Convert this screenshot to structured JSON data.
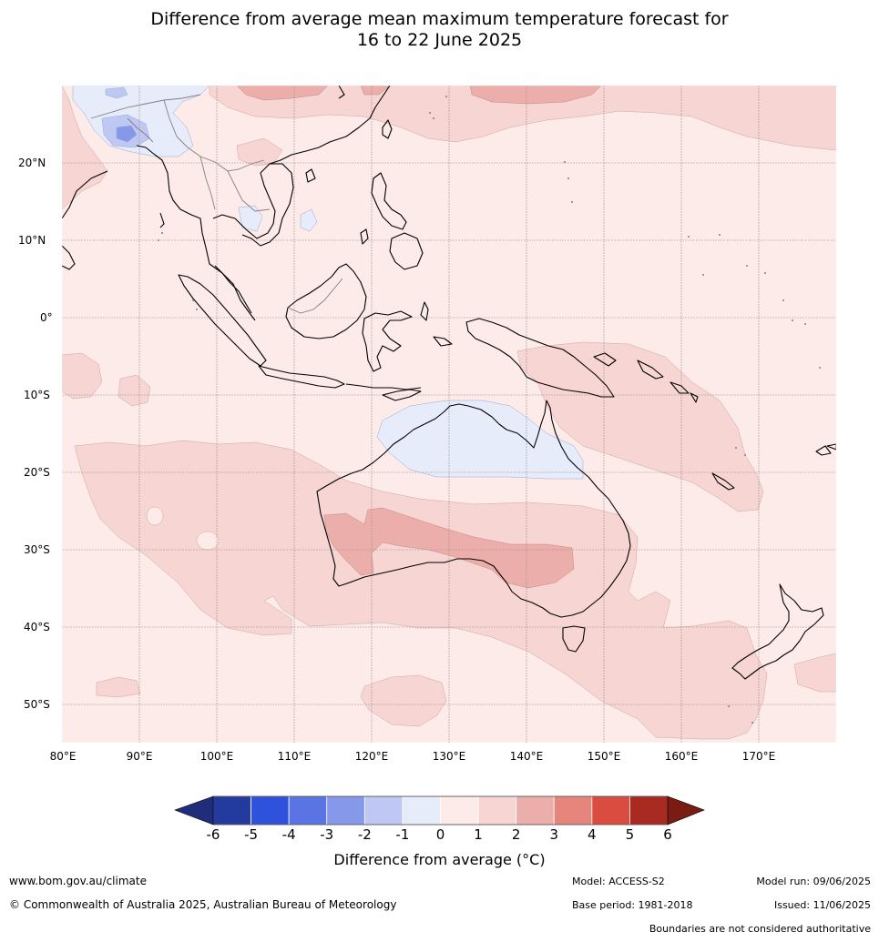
{
  "title_line1": "Difference from average mean maximum temperature forecast for",
  "title_line2": "16 to 22 June 2025",
  "lat_labels": [
    "20°N",
    "10°N",
    "0°",
    "10°S",
    "20°S",
    "30°S",
    "40°S",
    "50°S"
  ],
  "lon_labels": [
    "80°E",
    "90°E",
    "100°E",
    "110°E",
    "120°E",
    "130°E",
    "140°E",
    "150°E",
    "160°E",
    "170°E"
  ],
  "legend": {
    "title": "Difference from average (°C)",
    "ticks": [
      "-6",
      "-5",
      "-4",
      "-3",
      "-2",
      "-1",
      "0",
      "1",
      "2",
      "3",
      "4",
      "5",
      "6"
    ],
    "colors": [
      "#233b9e",
      "#2f52dc",
      "#5a74e3",
      "#8698ea",
      "#bfc8f3",
      "#e7ecfb",
      "#fcebe8",
      "#f6d5d2",
      "#ecaeaa",
      "#e5857c",
      "#d94c3f",
      "#a92a20"
    ],
    "under_color": "#1f2d7a",
    "over_color": "#7a1b14"
  },
  "colors": {
    "ocean_background": "#fcebe8",
    "land_outline": "#000000",
    "border_outline": "#808080",
    "grid": "#a09090"
  },
  "footer": {
    "website": "www.bom.gov.au/climate",
    "copyright": "© Commonwealth of Australia 2025, Australian Bureau of Meteorology",
    "model": "Model: ACCESS-S2",
    "base_period": "Base period: 1981-2018",
    "model_run": "Model run: 09/06/2025",
    "issued": "Issued: 11/06/2025",
    "disclaimer": "Boundaries are not considered authoritative"
  }
}
